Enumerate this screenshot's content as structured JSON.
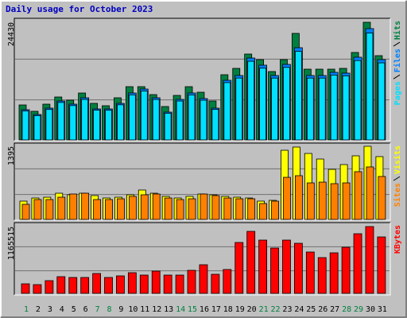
{
  "title": "Daily usage for October 2023",
  "chart_data": [
    {
      "type": "bar",
      "ylim": [
        0,
        24430
      ],
      "yticks": [
        24430
      ],
      "series": [
        {
          "name": "Hits",
          "color": "#008040",
          "values": [
            7263,
            5943,
            7428,
            8914,
            8254,
            9739,
            7593,
            7098,
            8749,
            11060,
            11060,
            9409,
            6933,
            9244,
            11060,
            9904,
            8088,
            13536,
            14856,
            17828,
            16672,
            14196,
            16672,
            22119,
            14691,
            14691,
            14691,
            14856,
            18158,
            24430,
            17497
          ]
        },
        {
          "name": "Files",
          "color": "#0080ff",
          "values": [
            6273,
            5282,
            6603,
            8088,
            7428,
            8749,
            6438,
            6438,
            7593,
            9739,
            10564,
            8749,
            5777,
            8419,
            9739,
            8584,
            6603,
            12380,
            13371,
            17002,
            15517,
            13371,
            15682,
            19148,
            13371,
            13371,
            14031,
            13866,
            17167,
            23110,
            16672
          ]
        },
        {
          "name": "Pages",
          "color": "#00e0ff",
          "values": [
            6000,
            5050,
            6320,
            7780,
            7130,
            8400,
            6170,
            6160,
            7290,
            9360,
            10150,
            8400,
            5540,
            8080,
            9350,
            8240,
            6330,
            11900,
            12850,
            16330,
            14900,
            12840,
            15060,
            18380,
            12840,
            12840,
            13470,
            13310,
            16480,
            22190,
            16000
          ]
        }
      ]
    },
    {
      "type": "bar",
      "ylim": [
        0,
        1395
      ],
      "yticks": [
        1395
      ],
      "series": [
        {
          "name": "Visits",
          "color": "#ffff00",
          "values": [
            349,
            409,
            424,
            500,
            470,
            500,
            455,
            409,
            424,
            470,
            561,
            500,
            440,
            409,
            440,
            485,
            470,
            440,
            424,
            409,
            349,
            364,
            1319,
            1380,
            1258,
            1152,
            955,
            1046,
            1213,
            1395,
            1198
          ]
        },
        {
          "name": "Sites",
          "color": "#ff8000",
          "values": [
            288,
            379,
            379,
            424,
            485,
            500,
            379,
            379,
            394,
            440,
            470,
            485,
            409,
            379,
            394,
            485,
            455,
            409,
            394,
            394,
            303,
            349,
            803,
            834,
            697,
            712,
            682,
            697,
            910,
            1001,
            819
          ]
        }
      ]
    },
    {
      "type": "bar",
      "ylim": [
        0,
        1165515
      ],
      "yticks": [
        1165515
      ],
      "categories": [
        "1",
        "2",
        "3",
        "4",
        "5",
        "6",
        "7",
        "8",
        "9",
        "10",
        "11",
        "12",
        "13",
        "14",
        "15",
        "16",
        "17",
        "18",
        "19",
        "20",
        "21",
        "22",
        "23",
        "24",
        "25",
        "26",
        "27",
        "28",
        "29",
        "30",
        "31"
      ],
      "category_colors": [
        "#008040",
        "#000000",
        "#000000",
        "#000000",
        "#000000",
        "#000000",
        "#008040",
        "#008040",
        "#000000",
        "#000000",
        "#000000",
        "#000000",
        "#000000",
        "#008040",
        "#008040",
        "#000000",
        "#000000",
        "#000000",
        "#000000",
        "#000000",
        "#008040",
        "#008040",
        "#000000",
        "#000000",
        "#000000",
        "#000000",
        "#000000",
        "#008040",
        "#008040",
        "#000000",
        "#000000"
      ],
      "series": [
        {
          "name": "KBytes",
          "color": "#ff0000",
          "values": [
            166500,
            152625,
            222000,
            291375,
            277500,
            277500,
            346875,
            277500,
            305250,
            360750,
            319125,
            388500,
            319125,
            319125,
            402375,
            499500,
            333000,
            416250,
            888000,
            1082250,
            929625,
            790875,
            929625,
            874125,
            721500,
            624375,
            707625,
            804750,
            1040625,
            1165515,
            985125
          ]
        }
      ]
    }
  ]
}
